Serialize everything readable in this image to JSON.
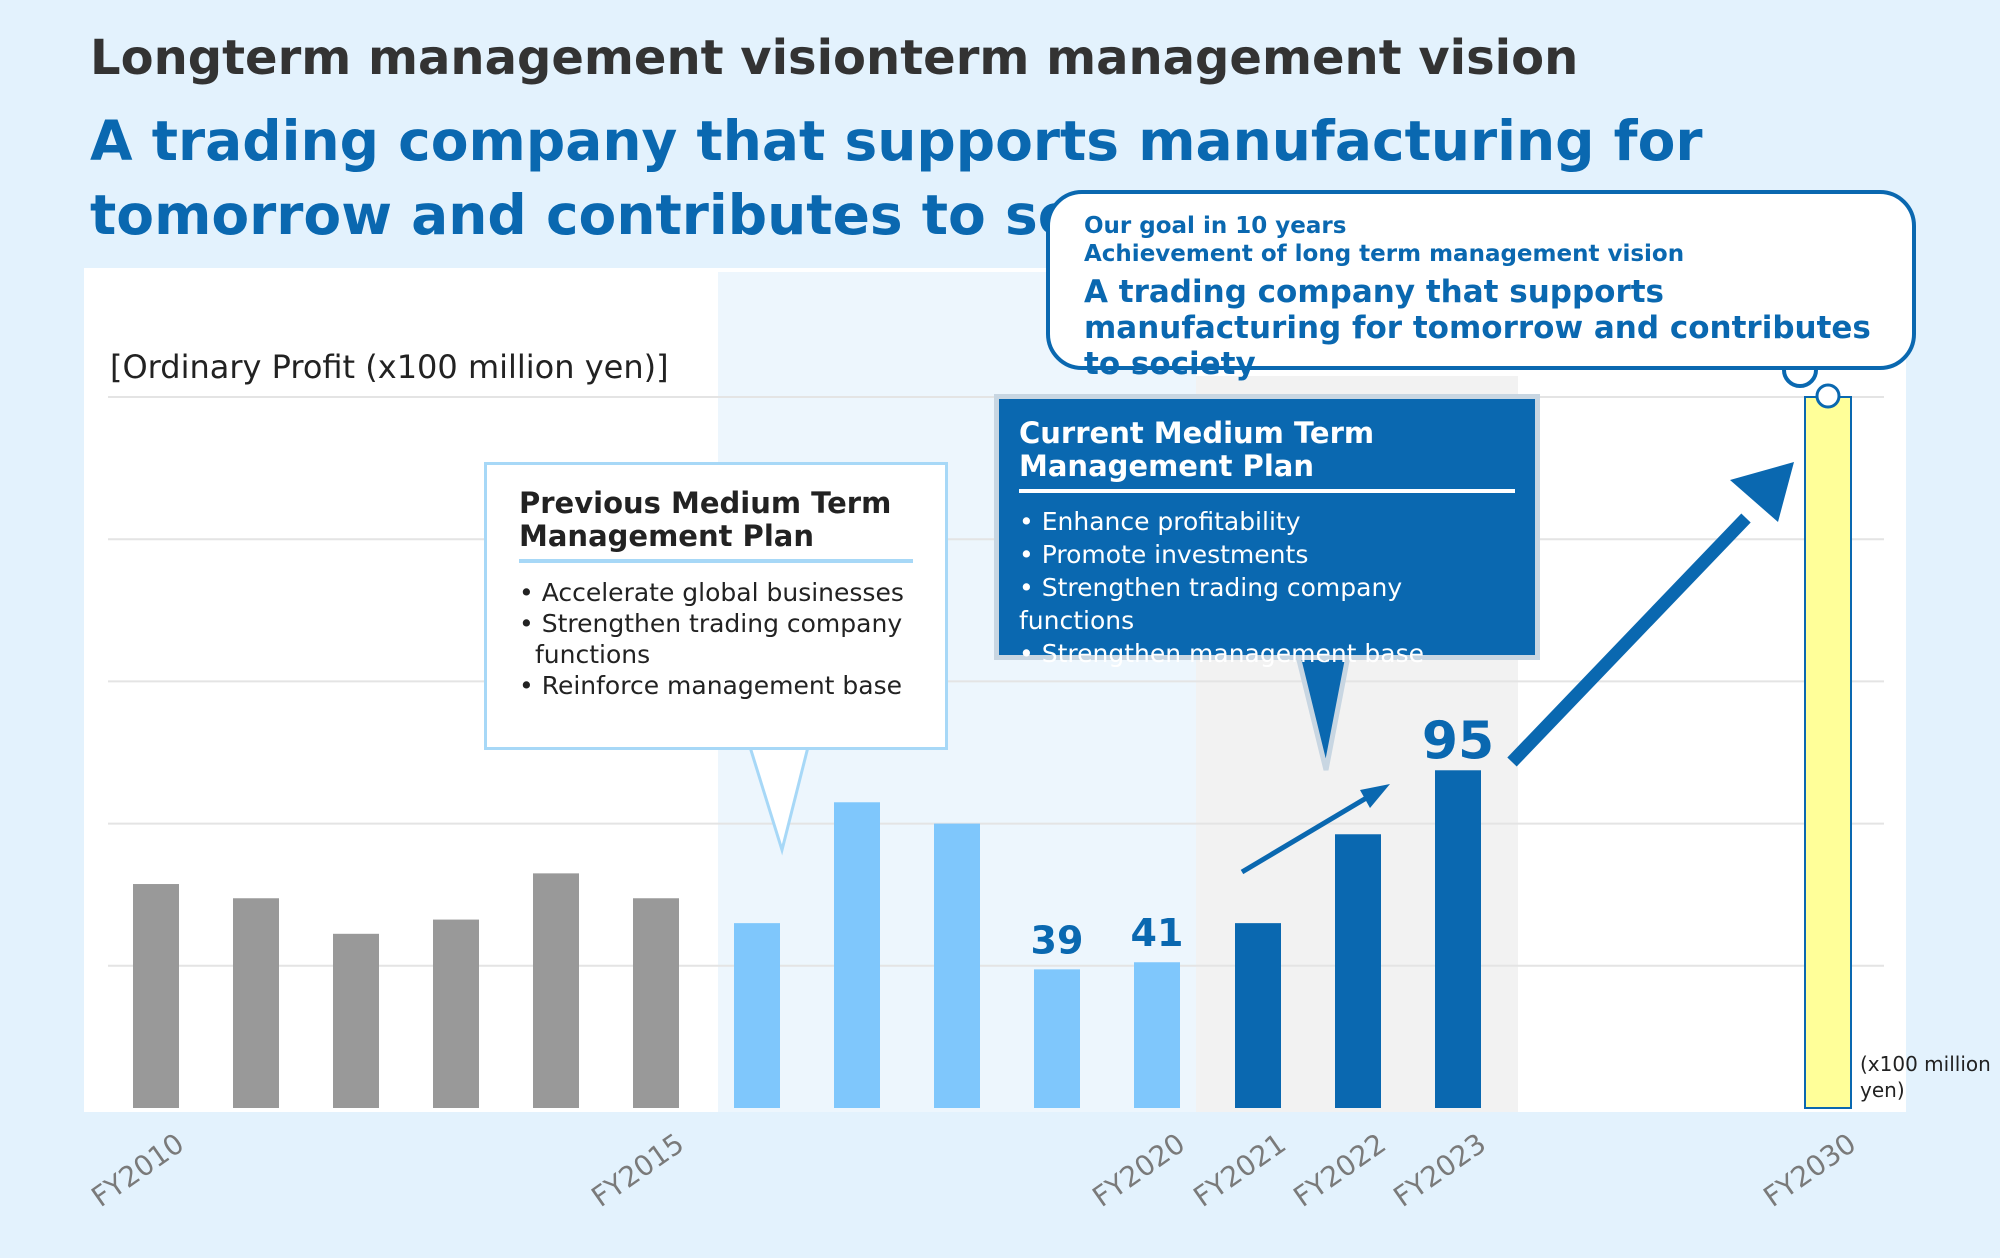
{
  "header": {
    "title": "Longterm management visionterm management vision",
    "subtitle": "A trading company that supports manufacturing for tomorrow and contributes to society"
  },
  "colors": {
    "historical": "#999999",
    "previous_plan": "#7fc7fc",
    "current_plan": "#0a68b0",
    "target": "#ffff99",
    "accent": "#0a68b0"
  },
  "chart_data": {
    "type": "bar",
    "ylabel": "[Ordinary Profit (x100 million yen)]",
    "unit_note": "(x100 million yen)",
    "ylim": [
      0,
      200
    ],
    "grid": true,
    "categories": [
      "FY2010",
      "",
      "",
      "",
      "",
      "FY2015",
      "",
      "",
      "",
      "",
      "FY2020",
      "FY2021",
      "FY2022",
      "FY2023",
      "FY2030"
    ],
    "values": [
      63,
      59,
      49,
      53,
      66,
      59,
      52,
      86,
      80,
      39,
      41,
      52,
      77,
      95,
      200
    ],
    "groups": [
      "historical",
      "historical",
      "historical",
      "historical",
      "historical",
      "historical",
      "previous_plan",
      "previous_plan",
      "previous_plan",
      "previous_plan",
      "previous_plan",
      "current_plan",
      "current_plan",
      "current_plan",
      "target"
    ],
    "data_labels": [
      "",
      "",
      "",
      "",
      "",
      "",
      "",
      "",
      "",
      "39",
      "41",
      "",
      "",
      "95",
      ""
    ]
  },
  "previous_plan": {
    "title_line1": "Previous Medium Term",
    "title_line2": "Management Plan",
    "items": [
      "Accelerate global businesses",
      "Strengthen trading company functions",
      "Reinforce management base"
    ]
  },
  "current_plan": {
    "title_line1": "Current Medium Term",
    "title_line2": "Management Plan",
    "items": [
      "Enhance profitability",
      "Promote investments",
      "Strengthen trading company functions",
      "Strengthen management base"
    ]
  },
  "goal": {
    "line1": "Our goal in 10 years",
    "line2": "Achievement of long term management vision",
    "vision": "A trading company that supports manufacturing for tomorrow and contributes to society"
  }
}
